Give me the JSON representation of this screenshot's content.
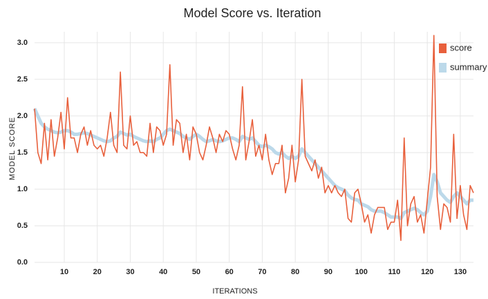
{
  "chart_data": {
    "type": "line",
    "title": "Model Score vs. Iteration",
    "xlabel": "ITERATIONS",
    "ylabel": "MODEL SCORE",
    "xlim": [
      1,
      134
    ],
    "ylim": [
      0,
      3.15
    ],
    "xticks": [
      10,
      20,
      30,
      40,
      50,
      60,
      70,
      80,
      90,
      100,
      110,
      120,
      130
    ],
    "yticks": [
      {
        "value": 0,
        "label": "0.0"
      },
      0.5,
      {
        "value": 1,
        "label": "1.0"
      },
      1.5,
      {
        "value": 2,
        "label": "2.0"
      },
      2.5,
      {
        "value": 3,
        "label": "3.0"
      }
    ],
    "grid": true,
    "legend": "upper right",
    "x": [
      1,
      2,
      3,
      4,
      5,
      6,
      7,
      8,
      9,
      10,
      11,
      12,
      13,
      14,
      15,
      16,
      17,
      18,
      19,
      20,
      21,
      22,
      23,
      24,
      25,
      26,
      27,
      28,
      29,
      30,
      31,
      32,
      33,
      34,
      35,
      36,
      37,
      38,
      39,
      40,
      41,
      42,
      43,
      44,
      45,
      46,
      47,
      48,
      49,
      50,
      51,
      52,
      53,
      54,
      55,
      56,
      57,
      58,
      59,
      60,
      61,
      62,
      63,
      64,
      65,
      66,
      67,
      68,
      69,
      70,
      71,
      72,
      73,
      74,
      75,
      76,
      77,
      78,
      79,
      80,
      81,
      82,
      83,
      84,
      85,
      86,
      87,
      88,
      89,
      90,
      91,
      92,
      93,
      94,
      95,
      96,
      97,
      98,
      99,
      100,
      101,
      102,
      103,
      104,
      105,
      106,
      107,
      108,
      109,
      110,
      111,
      112,
      113,
      114,
      115,
      116,
      117,
      118,
      119,
      120,
      121,
      122,
      123,
      124,
      125,
      126,
      127,
      128,
      129,
      130,
      131,
      132,
      133,
      134
    ],
    "series": [
      {
        "name": "score",
        "color": "#e8603c",
        "width": 1.6,
        "values": [
          2.1,
          1.5,
          1.35,
          1.9,
          1.4,
          1.95,
          1.45,
          1.7,
          2.05,
          1.55,
          2.25,
          1.7,
          1.7,
          1.5,
          1.75,
          1.85,
          1.6,
          1.8,
          1.6,
          1.55,
          1.6,
          1.45,
          1.7,
          2.05,
          1.6,
          1.5,
          2.6,
          1.6,
          1.55,
          2.0,
          1.6,
          1.65,
          1.5,
          1.5,
          1.45,
          1.9,
          1.5,
          1.85,
          1.8,
          1.6,
          1.75,
          2.7,
          1.6,
          1.95,
          1.9,
          1.5,
          1.75,
          1.4,
          1.85,
          1.75,
          1.5,
          1.4,
          1.6,
          1.85,
          1.7,
          1.5,
          1.75,
          1.65,
          1.8,
          1.75,
          1.55,
          1.4,
          1.6,
          2.4,
          1.4,
          1.65,
          1.95,
          1.45,
          1.6,
          1.4,
          1.75,
          1.4,
          1.2,
          1.35,
          1.35,
          1.6,
          0.95,
          1.15,
          1.6,
          1.1,
          1.4,
          2.5,
          1.45,
          1.35,
          1.25,
          1.4,
          1.15,
          1.3,
          0.95,
          1.05,
          0.95,
          1.05,
          0.95,
          0.9,
          1.0,
          0.6,
          0.55,
          0.95,
          1.0,
          0.8,
          0.55,
          0.65,
          0.4,
          0.65,
          0.75,
          0.75,
          0.75,
          0.45,
          0.55,
          0.55,
          0.85,
          0.3,
          1.7,
          0.5,
          0.8,
          0.9,
          0.55,
          0.65,
          0.4,
          0.85,
          1.3,
          3.1,
          0.9,
          0.45,
          0.8,
          0.75,
          0.55,
          1.75,
          0.6,
          1.05,
          0.65,
          0.45,
          1.05,
          0.95
        ]
      },
      {
        "name": "summary",
        "color": "#bcd9ea",
        "width": 5,
        "values": [
          2.1,
          2.0,
          1.9,
          1.85,
          1.82,
          1.8,
          1.78,
          1.77,
          1.78,
          1.8,
          1.8,
          1.78,
          1.75,
          1.75,
          1.76,
          1.77,
          1.76,
          1.74,
          1.72,
          1.7,
          1.68,
          1.66,
          1.65,
          1.66,
          1.7,
          1.72,
          1.78,
          1.76,
          1.74,
          1.75,
          1.72,
          1.7,
          1.68,
          1.66,
          1.65,
          1.66,
          1.65,
          1.68,
          1.7,
          1.75,
          1.8,
          1.82,
          1.8,
          1.78,
          1.76,
          1.72,
          1.7,
          1.68,
          1.72,
          1.75,
          1.72,
          1.68,
          1.65,
          1.66,
          1.68,
          1.66,
          1.65,
          1.66,
          1.68,
          1.7,
          1.7,
          1.68,
          1.65,
          1.72,
          1.7,
          1.68,
          1.7,
          1.65,
          1.6,
          1.58,
          1.6,
          1.58,
          1.55,
          1.5,
          1.48,
          1.5,
          1.45,
          1.42,
          1.45,
          1.42,
          1.45,
          1.55,
          1.5,
          1.45,
          1.4,
          1.35,
          1.3,
          1.25,
          1.2,
          1.15,
          1.1,
          1.05,
          1.02,
          1.0,
          0.98,
          0.92,
          0.88,
          0.86,
          0.85,
          0.8,
          0.78,
          0.76,
          0.72,
          0.7,
          0.7,
          0.7,
          0.68,
          0.65,
          0.62,
          0.62,
          0.62,
          0.6,
          0.68,
          0.7,
          0.72,
          0.74,
          0.72,
          0.68,
          0.65,
          0.7,
          0.9,
          1.2,
          1.1,
          0.95,
          0.9,
          0.85,
          0.82,
          0.9,
          0.95,
          0.9,
          0.85,
          0.8,
          0.85,
          0.85
        ]
      }
    ]
  }
}
